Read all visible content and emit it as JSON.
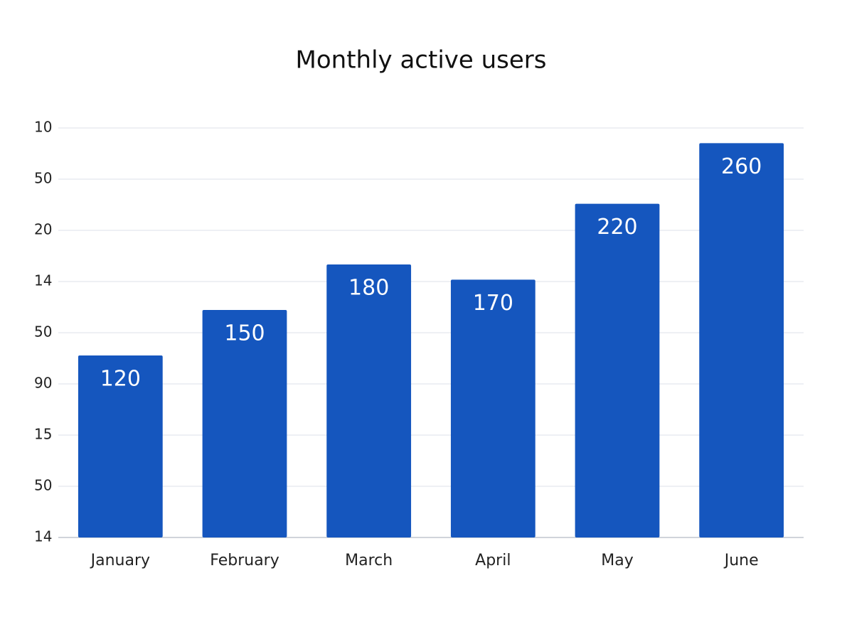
{
  "chart_data": {
    "type": "bar",
    "title": "Monthly active users",
    "categories": [
      "January",
      "February",
      "March",
      "April",
      "May",
      "June"
    ],
    "values": [
      120,
      150,
      180,
      170,
      220,
      260
    ],
    "color": "#1556be",
    "ylim": [
      0,
      270
    ],
    "y_axis_labels": [
      "10",
      "50",
      "20",
      "14",
      "50",
      "90",
      "15",
      "50",
      "14"
    ],
    "grid": true
  }
}
